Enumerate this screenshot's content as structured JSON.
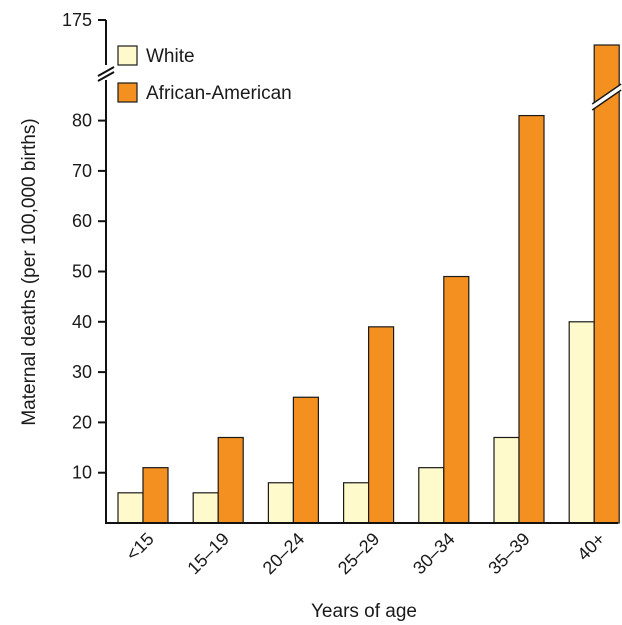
{
  "chart_data": {
    "type": "bar",
    "title": "",
    "xlabel": "Years of age",
    "ylabel": "Maternal deaths (per 100,000 births)",
    "categories": [
      "<15",
      "15–19",
      "20–24",
      "25–29",
      "30–34",
      "35–39",
      "40+"
    ],
    "series": [
      {
        "name": "White",
        "values": [
          6,
          6,
          8,
          8,
          11,
          17,
          40
        ],
        "color": "#FFFACC"
      },
      {
        "name": "African-American",
        "values": [
          11,
          17,
          25,
          39,
          49,
          81,
          175
        ],
        "color": "#F39020"
      }
    ],
    "ylim": [
      0,
      175
    ],
    "y_ticks": [
      "10",
      "20",
      "30",
      "40",
      "50",
      "60",
      "70",
      "80",
      "175"
    ],
    "y_axis_break": {
      "from": 85,
      "to": 175
    },
    "legend_position": "top-left",
    "grid": false
  }
}
